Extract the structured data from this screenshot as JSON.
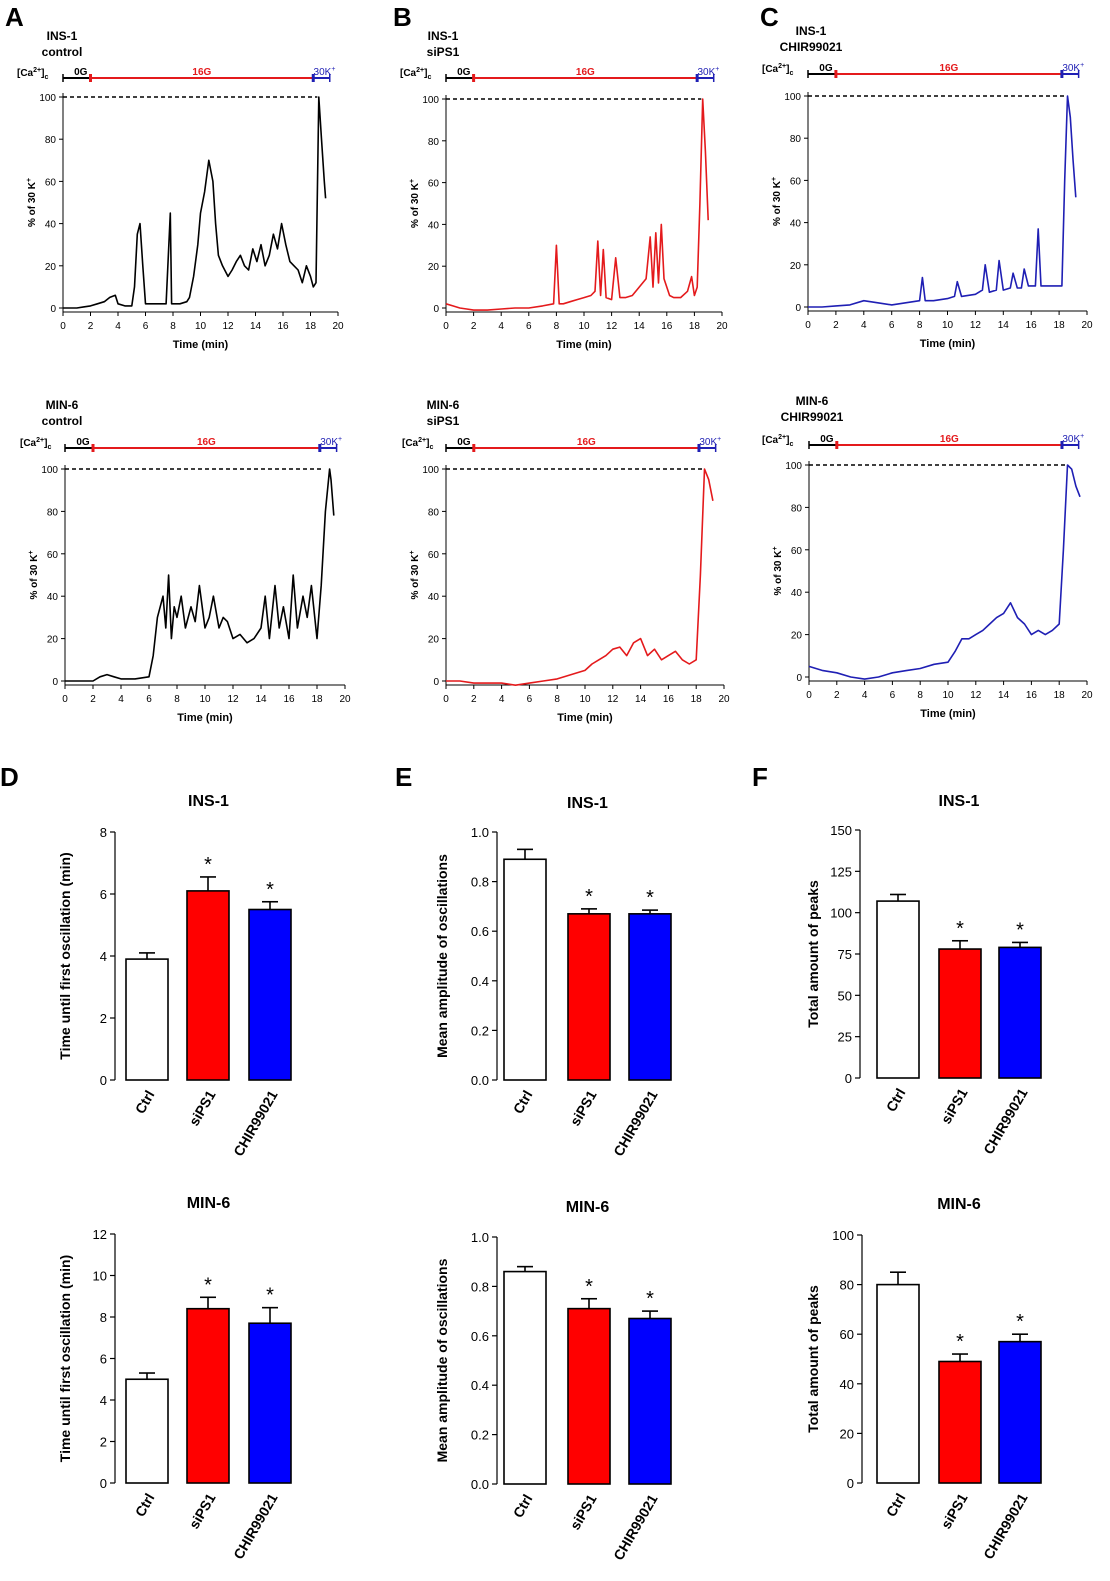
{
  "panels": {
    "traces": [
      {
        "letter": "A",
        "cell": "INS-1",
        "condition": "control",
        "color": "#000000",
        "axis_label": "[Ca",
        "axis_label_sup": "2+",
        "axis_label_sub": "c",
        "bar_labels": {
          "zero": "0G",
          "glucose": "16G",
          "k": "30K"
        },
        "ylabel": "% of 30 K",
        "ylabel_sup": "+",
        "xlabel": "Time (min)",
        "x": [
          0,
          0.5,
          1,
          1.5,
          2,
          2.5,
          3,
          3.4,
          3.8,
          4,
          4.5,
          5,
          5.2,
          5.4,
          5.6,
          5.8,
          6,
          6.5,
          7,
          7.5,
          7.8,
          7.9,
          8,
          8.5,
          9,
          9.2,
          9.5,
          9.8,
          10,
          10.3,
          10.6,
          10.9,
          11.1,
          11.3,
          11.6,
          12,
          12.3,
          12.6,
          12.9,
          13.2,
          13.5,
          13.8,
          14.1,
          14.4,
          14.7,
          15,
          15.3,
          15.6,
          15.9,
          16.2,
          16.5,
          16.8,
          17.1,
          17.4,
          17.7,
          18,
          18.2,
          18.4,
          18.6,
          18.8,
          19,
          19.1
        ],
        "y": [
          0,
          0,
          0,
          0.5,
          1,
          2,
          3,
          5,
          6,
          2,
          1,
          1,
          10,
          35,
          40,
          20,
          2,
          2,
          2,
          2,
          45,
          2,
          2,
          2,
          3,
          5,
          15,
          30,
          45,
          55,
          70,
          60,
          40,
          25,
          20,
          15,
          18,
          22,
          25,
          20,
          18,
          28,
          22,
          30,
          20,
          25,
          35,
          28,
          40,
          30,
          22,
          20,
          18,
          12,
          20,
          15,
          10,
          12,
          100,
          80,
          60,
          52
        ]
      },
      {
        "letter": "B",
        "cell": "INS-1",
        "condition": "siPS1",
        "color": "#e41a1c",
        "axis_label": "[Ca",
        "axis_label_sup": "2+",
        "axis_label_sub": "c",
        "bar_labels": {
          "zero": "0G",
          "glucose": "16G",
          "k": "30K"
        },
        "ylabel": "% of 30 K",
        "ylabel_sup": "+",
        "xlabel": "Time (min)",
        "x": [
          0,
          0.5,
          1,
          1.5,
          2,
          3,
          4,
          5,
          6,
          7,
          7.8,
          8,
          8.2,
          8.5,
          9,
          9.5,
          10,
          10.5,
          10.8,
          11,
          11.2,
          11.4,
          11.6,
          12,
          12.3,
          12.6,
          13,
          13.5,
          14,
          14.5,
          14.8,
          15,
          15.2,
          15.4,
          15.6,
          15.8,
          16,
          16.2,
          16.5,
          17,
          17.5,
          17.8,
          18,
          18.2,
          18.4,
          18.6,
          18.8,
          19
        ],
        "y": [
          2,
          1,
          0,
          -0.5,
          -1,
          -1,
          -0.5,
          0,
          0,
          1,
          2,
          30,
          2,
          2,
          3,
          4,
          5,
          6,
          8,
          32,
          6,
          28,
          5,
          4,
          24,
          5,
          5,
          6,
          10,
          14,
          34,
          10,
          36,
          12,
          40,
          14,
          10,
          6,
          5,
          5,
          8,
          15,
          6,
          10,
          50,
          100,
          75,
          42
        ]
      },
      {
        "letter": "C",
        "cell": "INS-1",
        "condition": "CHIR99021",
        "color": "#1f1fb4",
        "axis_label": "[Ca",
        "axis_label_sup": "2+",
        "axis_label_sub": "c",
        "bar_labels": {
          "zero": "0G",
          "glucose": "16G",
          "k": "30K"
        },
        "ylabel": "% of 30 K",
        "ylabel_sup": "+",
        "xlabel": "Time (min)",
        "x": [
          0,
          1,
          2,
          3,
          4,
          5,
          6,
          7,
          8,
          8.2,
          8.4,
          9,
          10,
          10.5,
          10.7,
          11,
          12,
          12.5,
          12.7,
          13,
          13.5,
          13.7,
          14,
          14.5,
          14.7,
          15,
          15.3,
          15.5,
          15.8,
          16.3,
          16.5,
          16.7,
          17,
          17.5,
          18,
          18.2,
          18.4,
          18.6,
          18.8,
          19,
          19.2
        ],
        "y": [
          0,
          0,
          0.5,
          1,
          3,
          2,
          1,
          2,
          3,
          14,
          3,
          3,
          4,
          5,
          12,
          5,
          6,
          8,
          20,
          7,
          8,
          22,
          8,
          9,
          16,
          9,
          9,
          18,
          10,
          10,
          37,
          10,
          10,
          10,
          10,
          10,
          60,
          100,
          90,
          70,
          52
        ]
      },
      {
        "letter": "",
        "cell": "MIN-6",
        "condition": "control",
        "color": "#000000",
        "axis_label": "[Ca",
        "axis_label_sup": "2+",
        "axis_label_sub": "c",
        "bar_labels": {
          "zero": "0G",
          "glucose": "16G",
          "k": "30K"
        },
        "ylabel": "% of 30 K",
        "ylabel_sup": "+",
        "xlabel": "Time (min)",
        "x": [
          0,
          1,
          2,
          2.5,
          3,
          3.5,
          4,
          5,
          6,
          6.3,
          6.6,
          7,
          7.2,
          7.4,
          7.6,
          7.8,
          8,
          8.3,
          8.6,
          9,
          9.3,
          9.6,
          10,
          10.3,
          10.6,
          11,
          11.3,
          11.6,
          12,
          12.5,
          13,
          13.5,
          14,
          14.3,
          14.6,
          15,
          15.3,
          15.6,
          16,
          16.3,
          16.6,
          17,
          17.3,
          17.6,
          18,
          18.3,
          18.6,
          18.9,
          19,
          19.2
        ],
        "y": [
          0,
          0,
          0,
          2,
          3,
          2,
          1,
          1,
          2,
          12,
          30,
          40,
          25,
          50,
          20,
          35,
          30,
          40,
          25,
          35,
          28,
          45,
          25,
          30,
          40,
          25,
          30,
          28,
          20,
          22,
          18,
          20,
          25,
          40,
          20,
          45,
          25,
          35,
          20,
          50,
          25,
          40,
          30,
          45,
          20,
          45,
          80,
          100,
          95,
          78
        ]
      },
      {
        "letter": "",
        "cell": "MIN-6",
        "condition": "siPS1",
        "color": "#e41a1c",
        "axis_label": "[Ca",
        "axis_label_sup": "2+",
        "axis_label_sub": "c",
        "bar_labels": {
          "zero": "0G",
          "glucose": "16G",
          "k": "30K"
        },
        "ylabel": "% of 30 K",
        "ylabel_sup": "+",
        "xlabel": "Time (min)",
        "x": [
          0,
          1,
          2,
          3,
          4,
          5,
          6,
          7,
          8,
          9,
          10,
          10.5,
          11,
          11.5,
          12,
          12.5,
          13,
          13.5,
          14,
          14.5,
          15,
          15.5,
          16,
          16.5,
          17,
          17.5,
          18,
          18.3,
          18.6,
          18.9,
          19.2
        ],
        "y": [
          0,
          0,
          -1,
          -1,
          -1,
          -2,
          -1,
          0,
          1,
          3,
          5,
          8,
          10,
          12,
          15,
          16,
          12,
          18,
          20,
          12,
          15,
          10,
          12,
          14,
          10,
          8,
          10,
          50,
          100,
          95,
          85
        ]
      },
      {
        "letter": "",
        "cell": "MIN-6",
        "condition": "CHIR99021",
        "color": "#1f1fb4",
        "axis_label": "[Ca",
        "axis_label_sup": "2+",
        "axis_label_sub": "c",
        "bar_labels": {
          "zero": "0G",
          "glucose": "16G",
          "k": "30K"
        },
        "ylabel": "% of 30 K",
        "ylabel_sup": "+",
        "xlabel": "Time (min)",
        "x": [
          0,
          1,
          2,
          3,
          4,
          5,
          6,
          7,
          8,
          9,
          10,
          10.5,
          11,
          11.5,
          12,
          12.5,
          13,
          13.5,
          14,
          14.5,
          15,
          15.5,
          16,
          16.5,
          17,
          17.5,
          18,
          18.3,
          18.6,
          18.9,
          19.2,
          19.5
        ],
        "y": [
          5,
          3,
          2,
          0,
          -1,
          0,
          2,
          3,
          4,
          6,
          7,
          12,
          18,
          18,
          20,
          22,
          25,
          28,
          30,
          35,
          28,
          25,
          20,
          22,
          20,
          22,
          25,
          60,
          100,
          98,
          90,
          85
        ]
      }
    ],
    "bars": [
      {
        "letter": "D",
        "title": "INS-1",
        "ylabel": "Time until first oscillation (min)",
        "chart_type": "bar",
        "ylim": [
          0,
          8
        ],
        "ticks": [
          0,
          2,
          4,
          6,
          8
        ],
        "categories": [
          "Ctrl",
          "siPS1",
          "CHIR99021"
        ],
        "values": [
          3.9,
          6.1,
          5.5
        ],
        "errors": [
          0.2,
          0.45,
          0.25
        ],
        "sig": [
          "",
          "*",
          "*"
        ],
        "colors": [
          "#ffffff",
          "#ff0000",
          "#0000ff"
        ]
      },
      {
        "letter": "E",
        "title": "INS-1",
        "ylabel": "Mean amplitude of oscillations",
        "chart_type": "bar",
        "ylim": [
          0,
          1.0
        ],
        "ticks": [
          0.0,
          0.2,
          0.4,
          0.6,
          0.8,
          1.0
        ],
        "categories": [
          "Ctrl",
          "siPS1",
          "CHIR99021"
        ],
        "values": [
          0.89,
          0.67,
          0.67
        ],
        "errors": [
          0.04,
          0.02,
          0.015
        ],
        "sig": [
          "",
          "*",
          "*"
        ],
        "colors": [
          "#ffffff",
          "#ff0000",
          "#0000ff"
        ]
      },
      {
        "letter": "F",
        "title": "INS-1",
        "ylabel": "Total amount of peaks",
        "chart_type": "bar",
        "ylim": [
          0,
          150
        ],
        "ticks": [
          0,
          25,
          50,
          75,
          100,
          125,
          150
        ],
        "categories": [
          "Ctrl",
          "siPS1",
          "CHIR99021"
        ],
        "values": [
          107,
          78,
          79
        ],
        "errors": [
          4,
          5,
          3
        ],
        "sig": [
          "",
          "*",
          "*"
        ],
        "colors": [
          "#ffffff",
          "#ff0000",
          "#0000ff"
        ]
      },
      {
        "letter": "",
        "title": "MIN-6",
        "ylabel": "Time until first oscillation (min)",
        "chart_type": "bar",
        "ylim": [
          0,
          12
        ],
        "ticks": [
          0,
          2,
          4,
          6,
          8,
          10,
          12
        ],
        "categories": [
          "Ctrl",
          "siPS1",
          "CHIR99021"
        ],
        "values": [
          5.0,
          8.4,
          7.7
        ],
        "errors": [
          0.3,
          0.55,
          0.75
        ],
        "sig": [
          "",
          "*",
          "*"
        ],
        "colors": [
          "#ffffff",
          "#ff0000",
          "#0000ff"
        ]
      },
      {
        "letter": "",
        "title": "MIN-6",
        "ylabel": "Mean amplitude of oscillations",
        "chart_type": "bar",
        "ylim": [
          0,
          1.0
        ],
        "ticks": [
          0.0,
          0.2,
          0.4,
          0.6,
          0.8,
          1.0
        ],
        "categories": [
          "Ctrl",
          "siPS1",
          "CHIR99021"
        ],
        "values": [
          0.86,
          0.71,
          0.67
        ],
        "errors": [
          0.02,
          0.04,
          0.03
        ],
        "sig": [
          "",
          "*",
          "*"
        ],
        "colors": [
          "#ffffff",
          "#ff0000",
          "#0000ff"
        ]
      },
      {
        "letter": "",
        "title": "MIN-6",
        "ylabel": "Total amount of peaks",
        "chart_type": "bar",
        "ylim": [
          0,
          100
        ],
        "ticks": [
          0,
          20,
          40,
          60,
          80,
          100
        ],
        "categories": [
          "Ctrl",
          "siPS1",
          "CHIR99021"
        ],
        "values": [
          80,
          49,
          57
        ],
        "errors": [
          5,
          3,
          3
        ],
        "sig": [
          "",
          "*",
          "*"
        ],
        "colors": [
          "#ffffff",
          "#ff0000",
          "#0000ff"
        ]
      }
    ]
  },
  "chart_data": [
    {
      "type": "line",
      "id": "A",
      "title": "INS-1 control",
      "xlabel": "Time (min)",
      "ylabel": "% of 30 K+",
      "xlim": [
        0,
        20
      ],
      "ylim": [
        0,
        100
      ],
      "reference_line": 100,
      "series_ref": "panels.traces.0"
    },
    {
      "type": "line",
      "id": "B",
      "title": "INS-1 siPS1",
      "xlabel": "Time (min)",
      "ylabel": "% of 30 K+",
      "xlim": [
        0,
        20
      ],
      "ylim": [
        0,
        100
      ],
      "reference_line": 100,
      "series_ref": "panels.traces.1"
    },
    {
      "type": "line",
      "id": "C",
      "title": "INS-1 CHIR99021",
      "xlabel": "Time (min)",
      "ylabel": "% of 30 K+",
      "xlim": [
        0,
        20
      ],
      "ylim": [
        0,
        100
      ],
      "reference_line": 100,
      "series_ref": "panels.traces.2"
    },
    {
      "type": "line",
      "title": "MIN-6 control",
      "xlabel": "Time (min)",
      "ylabel": "% of 30 K+",
      "xlim": [
        0,
        20
      ],
      "ylim": [
        0,
        100
      ],
      "reference_line": 100,
      "series_ref": "panels.traces.3"
    },
    {
      "type": "line",
      "title": "MIN-6 siPS1",
      "xlabel": "Time (min)",
      "ylabel": "% of 30 K+",
      "xlim": [
        0,
        20
      ],
      "ylim": [
        0,
        100
      ],
      "reference_line": 100,
      "series_ref": "panels.traces.4"
    },
    {
      "type": "line",
      "title": "MIN-6 CHIR99021",
      "xlabel": "Time (min)",
      "ylabel": "% of 30 K+",
      "xlim": [
        0,
        20
      ],
      "ylim": [
        0,
        100
      ],
      "reference_line": 100,
      "series_ref": "panels.traces.5"
    },
    {
      "type": "bar",
      "id": "D",
      "title": "INS-1",
      "categories": [
        "Ctrl",
        "siPS1",
        "CHIR99021"
      ],
      "values": [
        3.9,
        6.1,
        5.5
      ],
      "ylabel": "Time until first oscillation (min)",
      "ylim": [
        0,
        8
      ]
    },
    {
      "type": "bar",
      "id": "E",
      "title": "INS-1",
      "categories": [
        "Ctrl",
        "siPS1",
        "CHIR99021"
      ],
      "values": [
        0.89,
        0.67,
        0.67
      ],
      "ylabel": "Mean amplitude of oscillations",
      "ylim": [
        0,
        1.0
      ]
    },
    {
      "type": "bar",
      "id": "F",
      "title": "INS-1",
      "categories": [
        "Ctrl",
        "siPS1",
        "CHIR99021"
      ],
      "values": [
        107,
        78,
        79
      ],
      "ylabel": "Total amount of peaks",
      "ylim": [
        0,
        150
      ]
    },
    {
      "type": "bar",
      "title": "MIN-6",
      "categories": [
        "Ctrl",
        "siPS1",
        "CHIR99021"
      ],
      "values": [
        5.0,
        8.4,
        7.7
      ],
      "ylabel": "Time until first oscillation (min)",
      "ylim": [
        0,
        12
      ]
    },
    {
      "type": "bar",
      "title": "MIN-6",
      "categories": [
        "Ctrl",
        "siPS1",
        "CHIR99021"
      ],
      "values": [
        0.86,
        0.71,
        0.67
      ],
      "ylabel": "Mean amplitude of oscillations",
      "ylim": [
        0,
        1.0
      ]
    },
    {
      "type": "bar",
      "title": "MIN-6",
      "categories": [
        "Ctrl",
        "siPS1",
        "CHIR99021"
      ],
      "values": [
        80,
        49,
        57
      ],
      "ylabel": "Total amount of peaks",
      "ylim": [
        0,
        100
      ]
    }
  ],
  "trace_axis": {
    "xticks": [
      0,
      2,
      4,
      6,
      8,
      10,
      12,
      14,
      16,
      18,
      20
    ],
    "yticks": [
      0,
      20,
      40,
      60,
      80,
      100
    ],
    "xlim": [
      0,
      20
    ],
    "ylim": [
      0,
      100
    ]
  }
}
